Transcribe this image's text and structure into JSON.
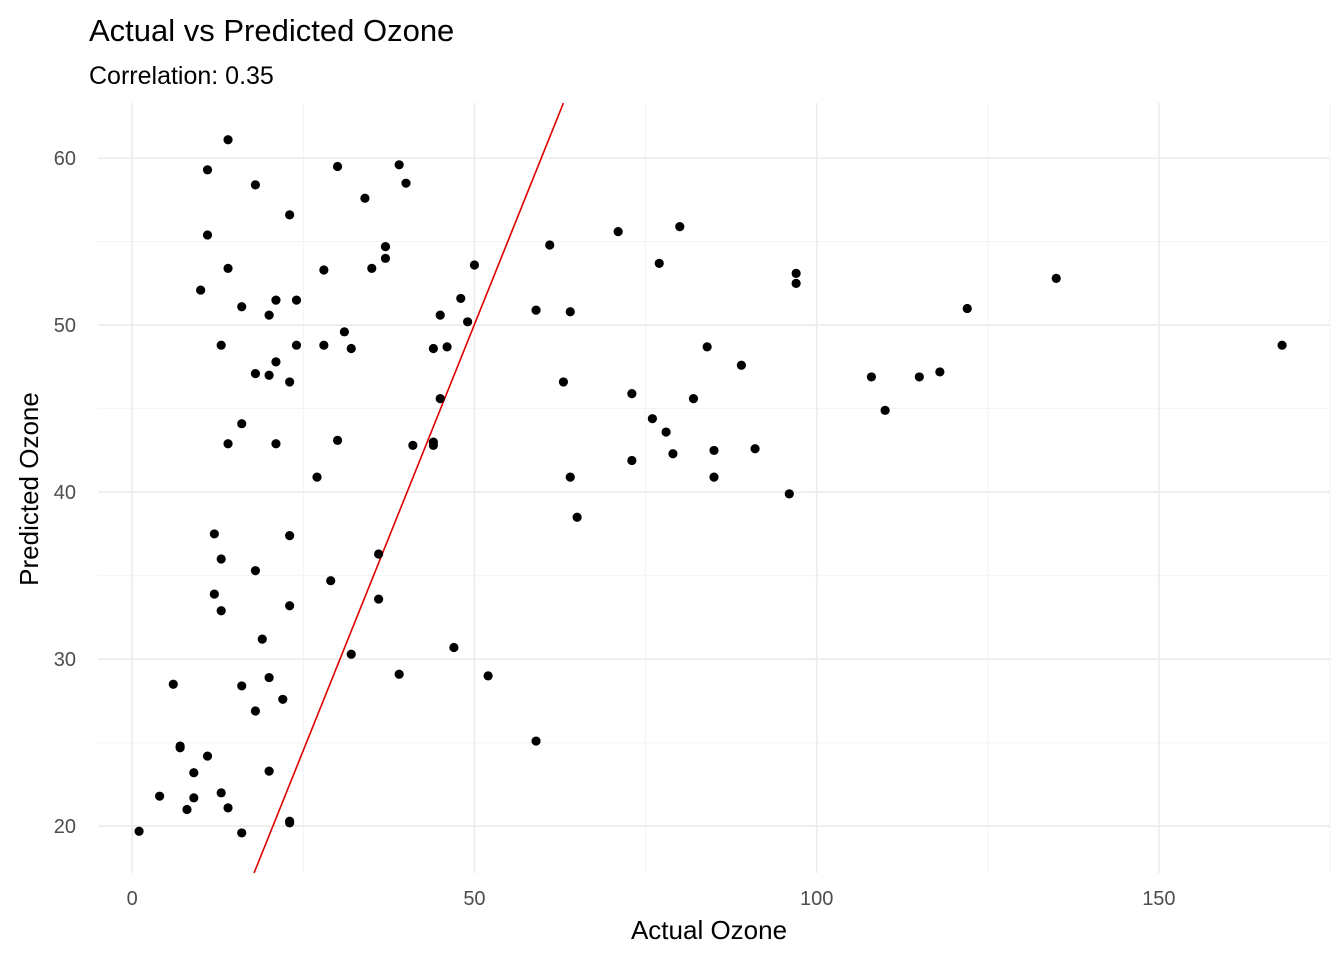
{
  "chart_data": {
    "type": "scatter",
    "title": "Actual vs Predicted Ozone",
    "subtitle": "Correlation:  0.35",
    "xlabel": "Actual Ozone",
    "ylabel": "Predicted Ozone",
    "xlim": [
      -5,
      175
    ],
    "ylim": [
      17.2,
      63.3
    ],
    "x_ticks": [
      0,
      50,
      100,
      150
    ],
    "x_tick_labels": [
      "0",
      "50",
      "100",
      "150"
    ],
    "y_ticks": [
      20,
      30,
      40,
      50,
      60
    ],
    "y_tick_labels": [
      "20",
      "30",
      "40",
      "50",
      "60"
    ],
    "grid": true,
    "point_color": "#000000",
    "reference_line": {
      "color": "#e00000",
      "x1": 17.8,
      "y1": 17.2,
      "x2": 63.0,
      "y2": 63.3
    },
    "points": [
      [
        1,
        19.7
      ],
      [
        4,
        21.8
      ],
      [
        6,
        28.5
      ],
      [
        7,
        24.7
      ],
      [
        7,
        24.8
      ],
      [
        8,
        21.0
      ],
      [
        9,
        21.7
      ],
      [
        9,
        23.2
      ],
      [
        10,
        52.1
      ],
      [
        11,
        59.3
      ],
      [
        11,
        55.4
      ],
      [
        11,
        24.2
      ],
      [
        12,
        37.5
      ],
      [
        12,
        33.9
      ],
      [
        13,
        36.0
      ],
      [
        13,
        32.9
      ],
      [
        13,
        22.0
      ],
      [
        13,
        48.8
      ],
      [
        14,
        61.1
      ],
      [
        14,
        53.4
      ],
      [
        14,
        42.9
      ],
      [
        14,
        21.1
      ],
      [
        16,
        51.1
      ],
      [
        16,
        44.1
      ],
      [
        16,
        28.4
      ],
      [
        16,
        19.6
      ],
      [
        18,
        58.4
      ],
      [
        18,
        47.1
      ],
      [
        18,
        35.3
      ],
      [
        18,
        26.9
      ],
      [
        19,
        31.2
      ],
      [
        20,
        50.6
      ],
      [
        20,
        47.0
      ],
      [
        20,
        28.9
      ],
      [
        20,
        23.3
      ],
      [
        21,
        51.5
      ],
      [
        21,
        47.8
      ],
      [
        21,
        42.9
      ],
      [
        22,
        27.6
      ],
      [
        23,
        56.6
      ],
      [
        23,
        46.6
      ],
      [
        23,
        37.4
      ],
      [
        23,
        33.2
      ],
      [
        23,
        20.3
      ],
      [
        23,
        20.2
      ],
      [
        24,
        51.5
      ],
      [
        24,
        48.8
      ],
      [
        27,
        40.9
      ],
      [
        28,
        53.3
      ],
      [
        28,
        48.8
      ],
      [
        29,
        34.7
      ],
      [
        30,
        59.5
      ],
      [
        30,
        43.1
      ],
      [
        31,
        49.6
      ],
      [
        32,
        48.6
      ],
      [
        32,
        30.3
      ],
      [
        34,
        57.6
      ],
      [
        35,
        53.4
      ],
      [
        36,
        36.3
      ],
      [
        36,
        33.6
      ],
      [
        37,
        54.7
      ],
      [
        37,
        54.0
      ],
      [
        39,
        59.6
      ],
      [
        39,
        29.1
      ],
      [
        40,
        58.5
      ],
      [
        41,
        42.8
      ],
      [
        44,
        48.6
      ],
      [
        44,
        43.0
      ],
      [
        44,
        42.8
      ],
      [
        45,
        50.6
      ],
      [
        45,
        45.6
      ],
      [
        46,
        48.7
      ],
      [
        47,
        30.7
      ],
      [
        48,
        51.6
      ],
      [
        49,
        50.2
      ],
      [
        50,
        53.6
      ],
      [
        52,
        29.0
      ],
      [
        59,
        50.9
      ],
      [
        59,
        25.1
      ],
      [
        61,
        54.8
      ],
      [
        63,
        46.6
      ],
      [
        64,
        50.8
      ],
      [
        64,
        40.9
      ],
      [
        65,
        38.5
      ],
      [
        71,
        55.6
      ],
      [
        73,
        45.9
      ],
      [
        73,
        41.9
      ],
      [
        76,
        44.4
      ],
      [
        77,
        53.7
      ],
      [
        78,
        43.6
      ],
      [
        79,
        42.3
      ],
      [
        80,
        55.9
      ],
      [
        82,
        45.6
      ],
      [
        84,
        48.7
      ],
      [
        85,
        42.5
      ],
      [
        85,
        40.9
      ],
      [
        89,
        47.6
      ],
      [
        91,
        42.6
      ],
      [
        96,
        39.9
      ],
      [
        97,
        53.1
      ],
      [
        97,
        52.5
      ],
      [
        108,
        46.9
      ],
      [
        110,
        44.9
      ],
      [
        115,
        46.9
      ],
      [
        118,
        47.2
      ],
      [
        122,
        51.0
      ],
      [
        135,
        52.8
      ],
      [
        168,
        48.8
      ]
    ]
  }
}
